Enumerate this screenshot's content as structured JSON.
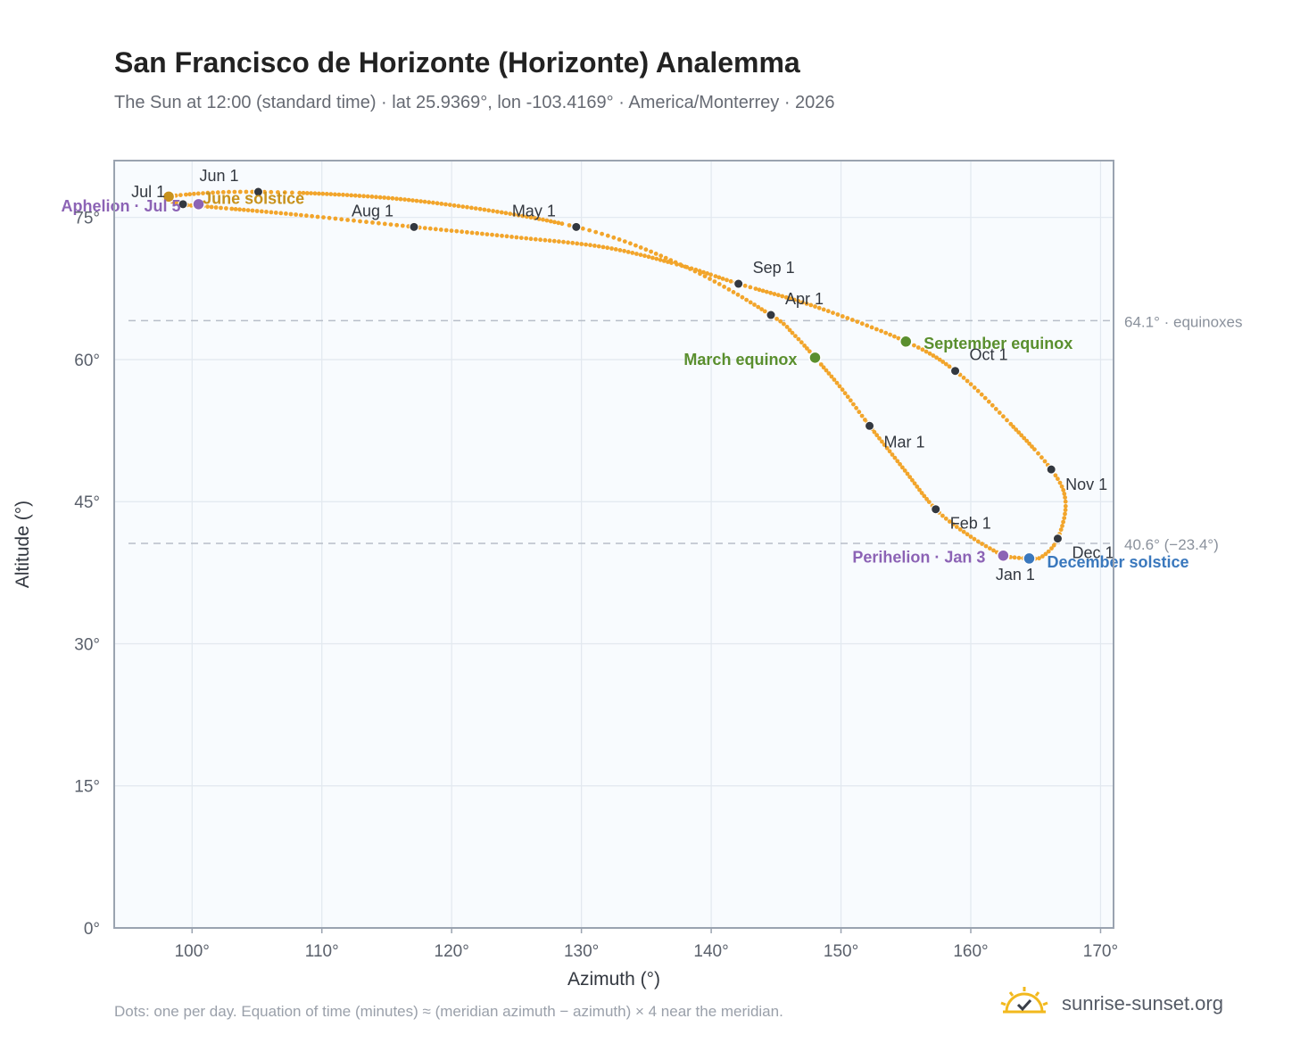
{
  "title": "San Francisco de Horizonte (Horizonte) Analemma",
  "subtitle": "The Sun at 12:00 (standard time) · lat 25.9369°, lon -103.4169° · America/Monterrey · 2026",
  "footnote": "Dots: one per day. Equation of time (minutes) ≈ (meridian azimuth − azimuth) × 4 near the meridian.",
  "brand": {
    "name": "sunrise-sunset.org",
    "icon": "sun-check-icon"
  },
  "colors": {
    "analemma": "#f2a52b",
    "month_marker": "#333840",
    "equinox": "#5a8f2e",
    "december_solstice": "#3a78bd",
    "june_solstice": "#c8921c",
    "apsis": "#8c63b5",
    "reference_line": "#b7bec8",
    "plot_background": "#f8fbfe"
  },
  "chart_data": {
    "type": "scatter",
    "xlabel": "Azimuth (°)",
    "ylabel": "Altitude (°)",
    "xlim": [
      94,
      171
    ],
    "ylim": [
      0,
      81
    ],
    "x_ticks": [
      100,
      110,
      120,
      130,
      140,
      150,
      160,
      170
    ],
    "y_ticks": [
      0,
      15,
      30,
      45,
      60,
      75
    ],
    "x_tick_labels": [
      "100°",
      "110°",
      "120°",
      "130°",
      "140°",
      "150°",
      "160°",
      "170°"
    ],
    "y_tick_labels": [
      "0°",
      "15°",
      "30°",
      "45°",
      "60°",
      "75°"
    ],
    "grid": true,
    "month_points": [
      {
        "label": "Jan 1",
        "az": 162.6,
        "alt": 39.2
      },
      {
        "label": "Feb 1",
        "az": 157.3,
        "alt": 44.2
      },
      {
        "label": "Mar 1",
        "az": 152.2,
        "alt": 53.0
      },
      {
        "label": "Apr 1",
        "az": 144.6,
        "alt": 64.7
      },
      {
        "label": "May 1",
        "az": 129.6,
        "alt": 74.0
      },
      {
        "label": "Jun 1",
        "az": 105.1,
        "alt": 77.7
      },
      {
        "label": "Jul 1",
        "az": 99.3,
        "alt": 76.4
      },
      {
        "label": "Aug 1",
        "az": 117.1,
        "alt": 74.0
      },
      {
        "label": "Sep 1",
        "az": 142.1,
        "alt": 68.0
      },
      {
        "label": "Oct 1",
        "az": 158.8,
        "alt": 58.8
      },
      {
        "label": "Nov 1",
        "az": 166.2,
        "alt": 48.4
      },
      {
        "label": "Dec 1",
        "az": 166.7,
        "alt": 41.1
      }
    ],
    "events": [
      {
        "label": "March equinox",
        "az": 148.0,
        "alt": 60.2,
        "color_key": "equinox"
      },
      {
        "label": "September equinox",
        "az": 155.0,
        "alt": 61.9,
        "color_key": "equinox"
      },
      {
        "label": "December solstice",
        "az": 164.5,
        "alt": 39.0,
        "color_key": "december_solstice"
      },
      {
        "label": "June solstice",
        "az": 98.2,
        "alt": 77.2,
        "color_key": "june_solstice"
      },
      {
        "label": "Perihelion · Jan 3",
        "az": 162.5,
        "alt": 39.3,
        "color_key": "apsis"
      },
      {
        "label": "Aphelion · Jul 5",
        "az": 100.5,
        "alt": 76.4,
        "color_key": "apsis"
      }
    ],
    "reference_lines": [
      {
        "alt": 64.1,
        "label": "64.1° · equinoxes"
      },
      {
        "alt": 40.6,
        "label": "40.6° (−23.4°)"
      }
    ],
    "analemma_path": [
      [
        162.6,
        39.2
      ],
      [
        160.0,
        41.3
      ],
      [
        157.3,
        44.2
      ],
      [
        154.8,
        48.5
      ],
      [
        152.2,
        53.0
      ],
      [
        150.0,
        57.0
      ],
      [
        148.0,
        60.2
      ],
      [
        146.4,
        62.6
      ],
      [
        144.6,
        64.7
      ],
      [
        138.0,
        69.8
      ],
      [
        129.6,
        74.0
      ],
      [
        117.0,
        76.8
      ],
      [
        105.1,
        77.7
      ],
      [
        98.2,
        77.2
      ],
      [
        99.3,
        76.4
      ],
      [
        101.5,
        76.1
      ],
      [
        108.0,
        75.3
      ],
      [
        117.1,
        74.0
      ],
      [
        125.0,
        72.9
      ],
      [
        132.0,
        71.8
      ],
      [
        138.0,
        69.8
      ],
      [
        142.1,
        68.0
      ],
      [
        148.0,
        65.6
      ],
      [
        155.0,
        61.9
      ],
      [
        158.8,
        58.8
      ],
      [
        162.5,
        54.0
      ],
      [
        166.2,
        48.4
      ],
      [
        167.3,
        45.0
      ],
      [
        166.7,
        41.1
      ],
      [
        165.5,
        39.2
      ],
      [
        164.5,
        39.0
      ],
      [
        162.6,
        39.2
      ]
    ]
  }
}
